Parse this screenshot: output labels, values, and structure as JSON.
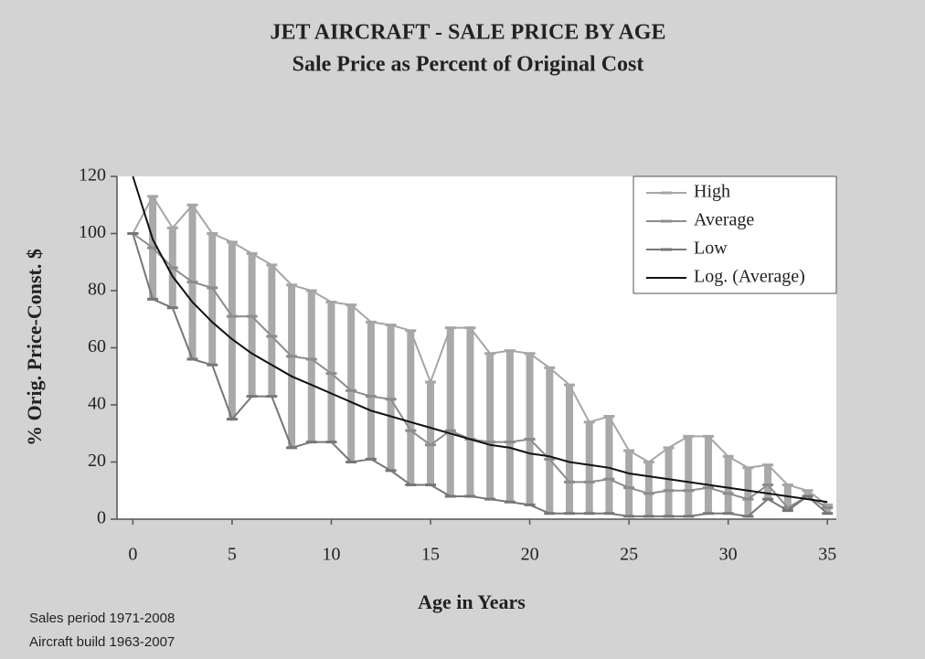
{
  "chart_data": {
    "type": "hilo-line",
    "title": "JET AIRCRAFT - SALE PRICE BY AGE",
    "subtitle": "Sale Price as Percent of Original Cost",
    "x_label": "Age in Years",
    "y_label": "% Orig. Price-Const. $",
    "notes": [
      "Sales period 1971-2008",
      "Aircraft build 1963-2007"
    ],
    "x": [
      0,
      1,
      2,
      3,
      4,
      5,
      6,
      7,
      8,
      9,
      10,
      11,
      12,
      13,
      14,
      15,
      16,
      17,
      18,
      19,
      20,
      21,
      22,
      23,
      24,
      25,
      26,
      27,
      28,
      29,
      30,
      31,
      32,
      33,
      34,
      35
    ],
    "series": [
      {
        "name": "High",
        "color": "#a6a6a6",
        "values": [
          100,
          113,
          102,
          110,
          100,
          97,
          93,
          89,
          82,
          80,
          76,
          75,
          69,
          68,
          66,
          48,
          67,
          67,
          58,
          59,
          58,
          53,
          47,
          34,
          36,
          24,
          20,
          25,
          29,
          29,
          22,
          18,
          19,
          12,
          10,
          5
        ]
      },
      {
        "name": "Average",
        "color": "#8c8c8c",
        "values": [
          100,
          95,
          88,
          83,
          81,
          71,
          71,
          64,
          57,
          56,
          51,
          45,
          43,
          42,
          31,
          26,
          31,
          28,
          27,
          27,
          28,
          21,
          13,
          13,
          14,
          11,
          9,
          10,
          10,
          11,
          9,
          7,
          12,
          4,
          8,
          4
        ]
      },
      {
        "name": "Low",
        "color": "#767676",
        "values": [
          100,
          77,
          74,
          56,
          54,
          35,
          43,
          43,
          25,
          27,
          27,
          20,
          21,
          17,
          12,
          12,
          8,
          8,
          7,
          6,
          5,
          2,
          2,
          2,
          2,
          1,
          1,
          1,
          1,
          2,
          2,
          1,
          7,
          3,
          8,
          2
        ]
      },
      {
        "name": "Log. (Average)",
        "color": "#111111",
        "values": [
          120,
          98,
          85,
          76,
          69,
          63,
          58,
          54,
          50,
          47,
          44,
          41,
          38,
          36,
          34,
          32,
          30,
          28,
          26,
          25,
          23,
          22,
          20,
          19,
          18,
          16,
          15,
          14,
          13,
          12,
          11,
          10,
          9,
          8,
          7,
          6
        ]
      }
    ],
    "bar_color": "#a9a9a9",
    "xlim": [
      -0.8,
      35.45
    ],
    "xticks": [
      0,
      5,
      10,
      15,
      20,
      25,
      30,
      35
    ],
    "ylim": [
      0,
      120
    ],
    "yticks": [
      0,
      20,
      40,
      60,
      80,
      100,
      120
    ],
    "legend": "top-right"
  }
}
